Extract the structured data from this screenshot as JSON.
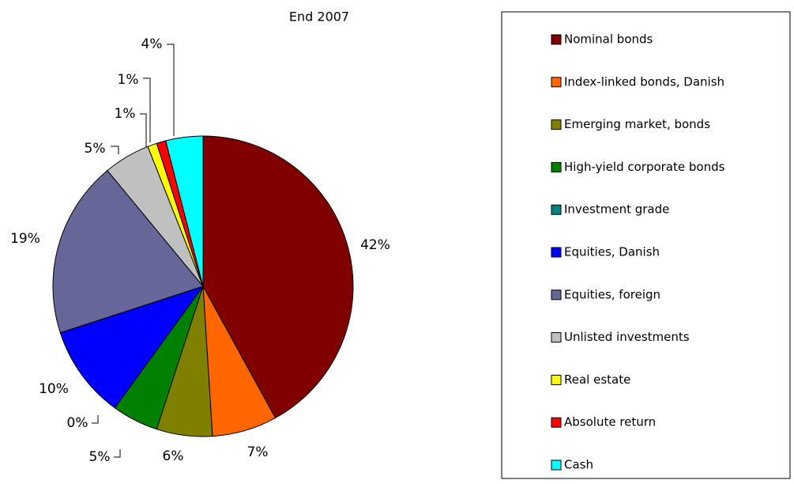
{
  "chart_data": {
    "type": "pie",
    "title": "End 2007",
    "categories": [
      "Nominal bonds",
      "Index-linked bonds, Danish",
      "Emerging market, bonds",
      "High-yield corporate bonds",
      "Investment grade",
      "Equities, Danish",
      "Equities, foreign",
      "Unlisted investments",
      "Real estate",
      "Absolute return",
      "Cash"
    ],
    "values": [
      42,
      7,
      6,
      5,
      0,
      10,
      19,
      5,
      1,
      1,
      4
    ],
    "value_labels": [
      "42%",
      "7%",
      "6%",
      "5%",
      "0%",
      "10%",
      "19%",
      "5%",
      "1%",
      "1%",
      "4%"
    ],
    "colors": [
      "#800000",
      "#ff6600",
      "#808000",
      "#008000",
      "#008080",
      "#0000ff",
      "#666699",
      "#c0c0c0",
      "#ffff00",
      "#ff0000",
      "#00ffff"
    ],
    "legend": "right"
  }
}
